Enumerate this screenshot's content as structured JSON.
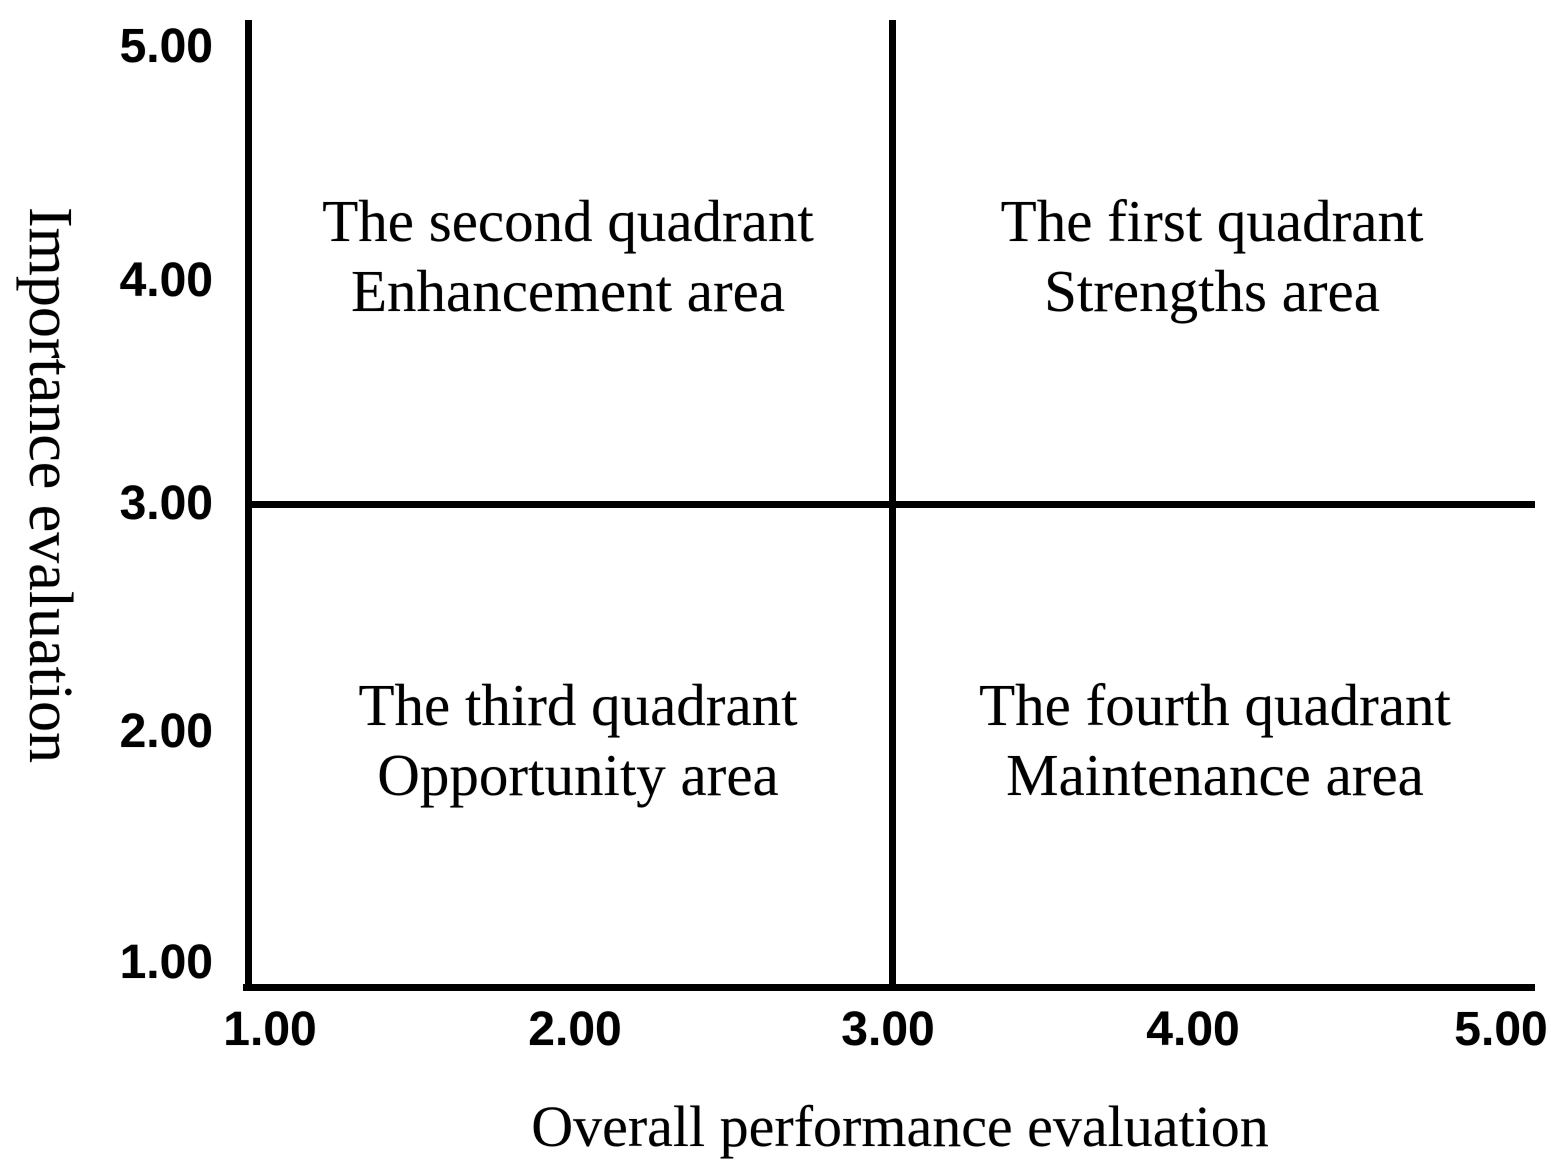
{
  "chart_data": {
    "type": "quadrant",
    "title": "",
    "xlabel": "Overall performance evaluation",
    "ylabel": "Importance evaluation",
    "xlim": [
      1.0,
      5.0
    ],
    "ylim": [
      1.0,
      5.0
    ],
    "x_ticks": [
      "1.00",
      "2.00",
      "3.00",
      "4.00",
      "5.00"
    ],
    "y_ticks": [
      "5.00",
      "4.00",
      "3.00",
      "2.00",
      "1.00"
    ],
    "grid": false,
    "legend_position": "none",
    "crosshair": {
      "x": 3.0,
      "y": 3.0
    },
    "quadrants": [
      {
        "number": "first",
        "position": "top-right",
        "line1": "The first quadrant",
        "line2": "Strengths area"
      },
      {
        "number": "second",
        "position": "top-left",
        "line1": "The second quadrant",
        "line2": "Enhancement area"
      },
      {
        "number": "third",
        "position": "bottom-left",
        "line1": "The third quadrant",
        "line2": "Opportunity area"
      },
      {
        "number": "fourth",
        "position": "bottom-right",
        "line1": "The fourth quadrant",
        "line2": "Maintenance area"
      }
    ],
    "colors": {
      "axis": "#000000",
      "text": "#000000",
      "background": "#ffffff"
    }
  }
}
